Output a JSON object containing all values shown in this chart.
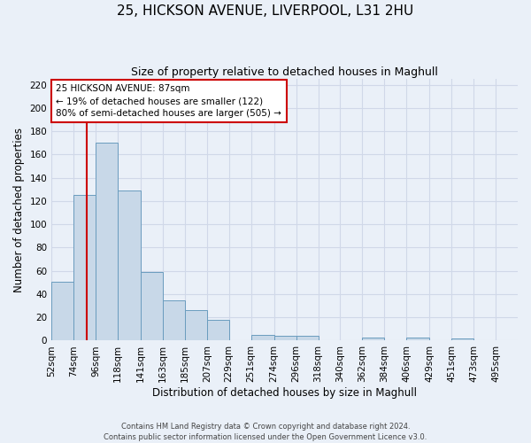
{
  "title": "25, HICKSON AVENUE, LIVERPOOL, L31 2HU",
  "subtitle": "Size of property relative to detached houses in Maghull",
  "xlabel": "Distribution of detached houses by size in Maghull",
  "ylabel": "Number of detached properties",
  "bin_edges": [
    52,
    74,
    96,
    118,
    141,
    163,
    185,
    207,
    229,
    251,
    274,
    296,
    318,
    340,
    362,
    384,
    406,
    429,
    451,
    473,
    495
  ],
  "bar_heights": [
    51,
    125,
    170,
    129,
    59,
    35,
    26,
    18,
    0,
    5,
    4,
    4,
    0,
    0,
    3,
    0,
    3,
    0,
    2,
    0
  ],
  "bar_color": "#c8d8e8",
  "bar_edge_color": "#6a9cbe",
  "vline_x": 87,
  "vline_color": "#cc0000",
  "annotation_text": "25 HICKSON AVENUE: 87sqm\n← 19% of detached houses are smaller (122)\n80% of semi-detached houses are larger (505) →",
  "annotation_box_color": "#ffffff",
  "annotation_box_edge": "#cc0000",
  "xlim": [
    52,
    517
  ],
  "ylim": [
    0,
    225
  ],
  "yticks": [
    0,
    20,
    40,
    60,
    80,
    100,
    120,
    140,
    160,
    180,
    200,
    220
  ],
  "xtick_labels": [
    "52sqm",
    "74sqm",
    "96sqm",
    "118sqm",
    "141sqm",
    "163sqm",
    "185sqm",
    "207sqm",
    "229sqm",
    "251sqm",
    "274sqm",
    "296sqm",
    "318sqm",
    "340sqm",
    "362sqm",
    "384sqm",
    "406sqm",
    "429sqm",
    "451sqm",
    "473sqm",
    "495sqm"
  ],
  "xtick_positions": [
    52,
    74,
    96,
    118,
    141,
    163,
    185,
    207,
    229,
    251,
    274,
    296,
    318,
    340,
    362,
    384,
    406,
    429,
    451,
    473,
    495
  ],
  "grid_color": "#d0d8e8",
  "bg_color": "#eaf0f8",
  "footer_text": "Contains HM Land Registry data © Crown copyright and database right 2024.\nContains public sector information licensed under the Open Government Licence v3.0.",
  "title_fontsize": 11,
  "subtitle_fontsize": 9,
  "xlabel_fontsize": 8.5,
  "ylabel_fontsize": 8.5,
  "ann_fontsize": 7.5
}
